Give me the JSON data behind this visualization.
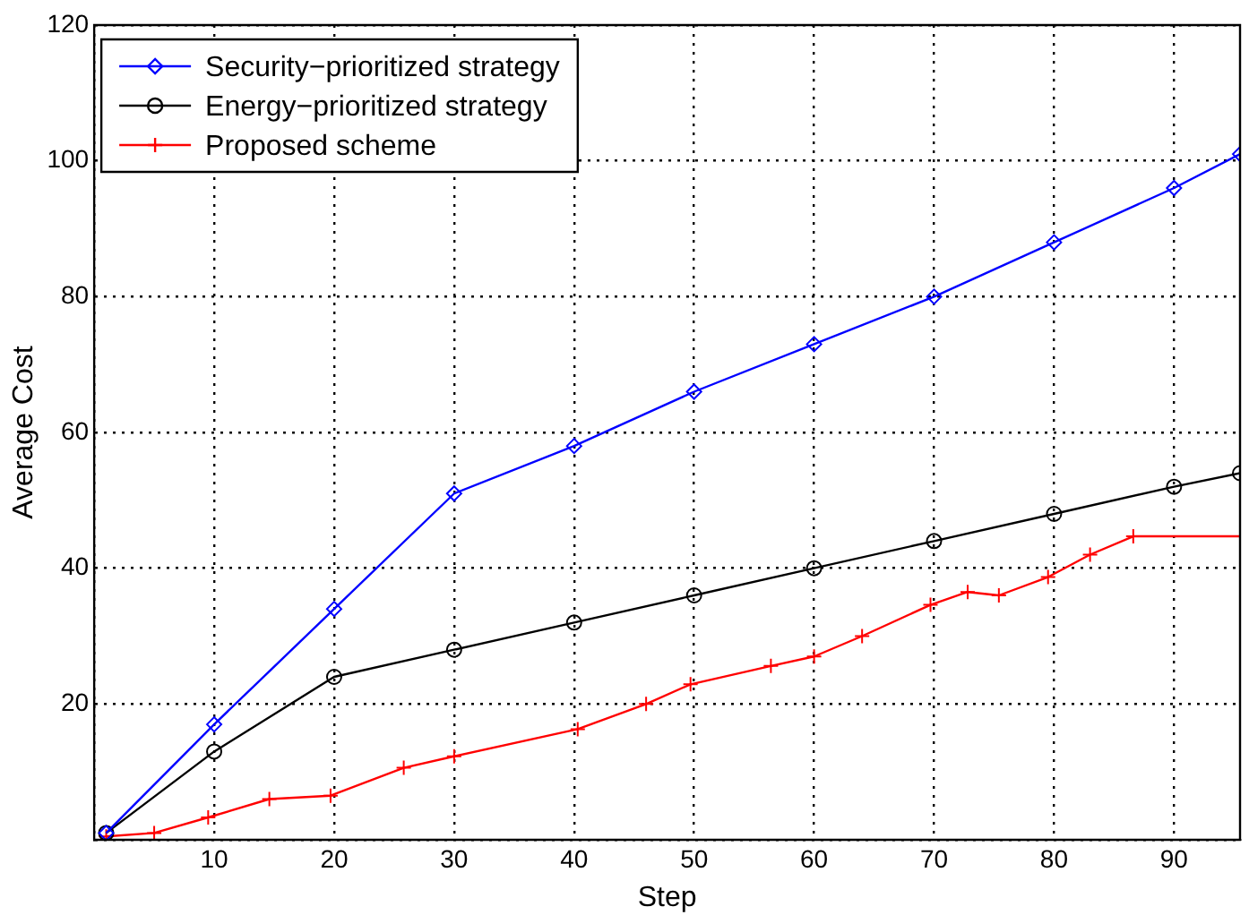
{
  "chart_data": {
    "type": "line",
    "xlabel": "Step",
    "ylabel": "Average Cost",
    "xlim": [
      0,
      95.5
    ],
    "xticks": [
      {
        "value": 0,
        "label": null
      },
      10,
      20,
      30,
      40,
      50,
      60,
      70,
      80,
      90
    ],
    "ylim": [
      0,
      120
    ],
    "yticks": [
      {
        "value": 0,
        "label": null
      },
      20,
      40,
      60,
      80,
      100,
      120
    ],
    "grid": true,
    "legend": "top left",
    "line_style": "solid",
    "series": [
      {
        "name": "Security−prioritized strategy",
        "color": "#0000ff",
        "marker": "diamond",
        "x": [
          1,
          10,
          20,
          30,
          40,
          50,
          60,
          70,
          80,
          90,
          95.5
        ],
        "values": [
          1,
          17,
          34,
          51,
          58,
          66,
          73,
          80,
          88,
          96,
          101
        ]
      },
      {
        "name": "Energy−prioritized strategy",
        "color": "#000000",
        "marker": "circle",
        "x": [
          1,
          10,
          20,
          30,
          40,
          50,
          60,
          70,
          80,
          90,
          95.5
        ],
        "values": [
          1,
          13,
          24,
          28,
          32,
          36,
          40,
          44,
          48,
          52,
          54
        ]
      },
      {
        "name": "Proposed scheme",
        "color": "#ff0000",
        "marker": "cross",
        "x": [
          1,
          5,
          9.5,
          14.6,
          19.7,
          25.8,
          30,
          40.3,
          46,
          49.7,
          56.4,
          60,
          64,
          69.7,
          72.8,
          75.4,
          79.5,
          83,
          86.6,
          95.5
        ],
        "values": [
          0.5,
          1,
          3.3,
          6,
          6.5,
          10.6,
          12.3,
          16.3,
          20,
          22.9,
          25.6,
          27,
          30,
          34.6,
          36.5,
          36,
          38.7,
          42,
          44.7,
          44.7
        ]
      }
    ]
  }
}
